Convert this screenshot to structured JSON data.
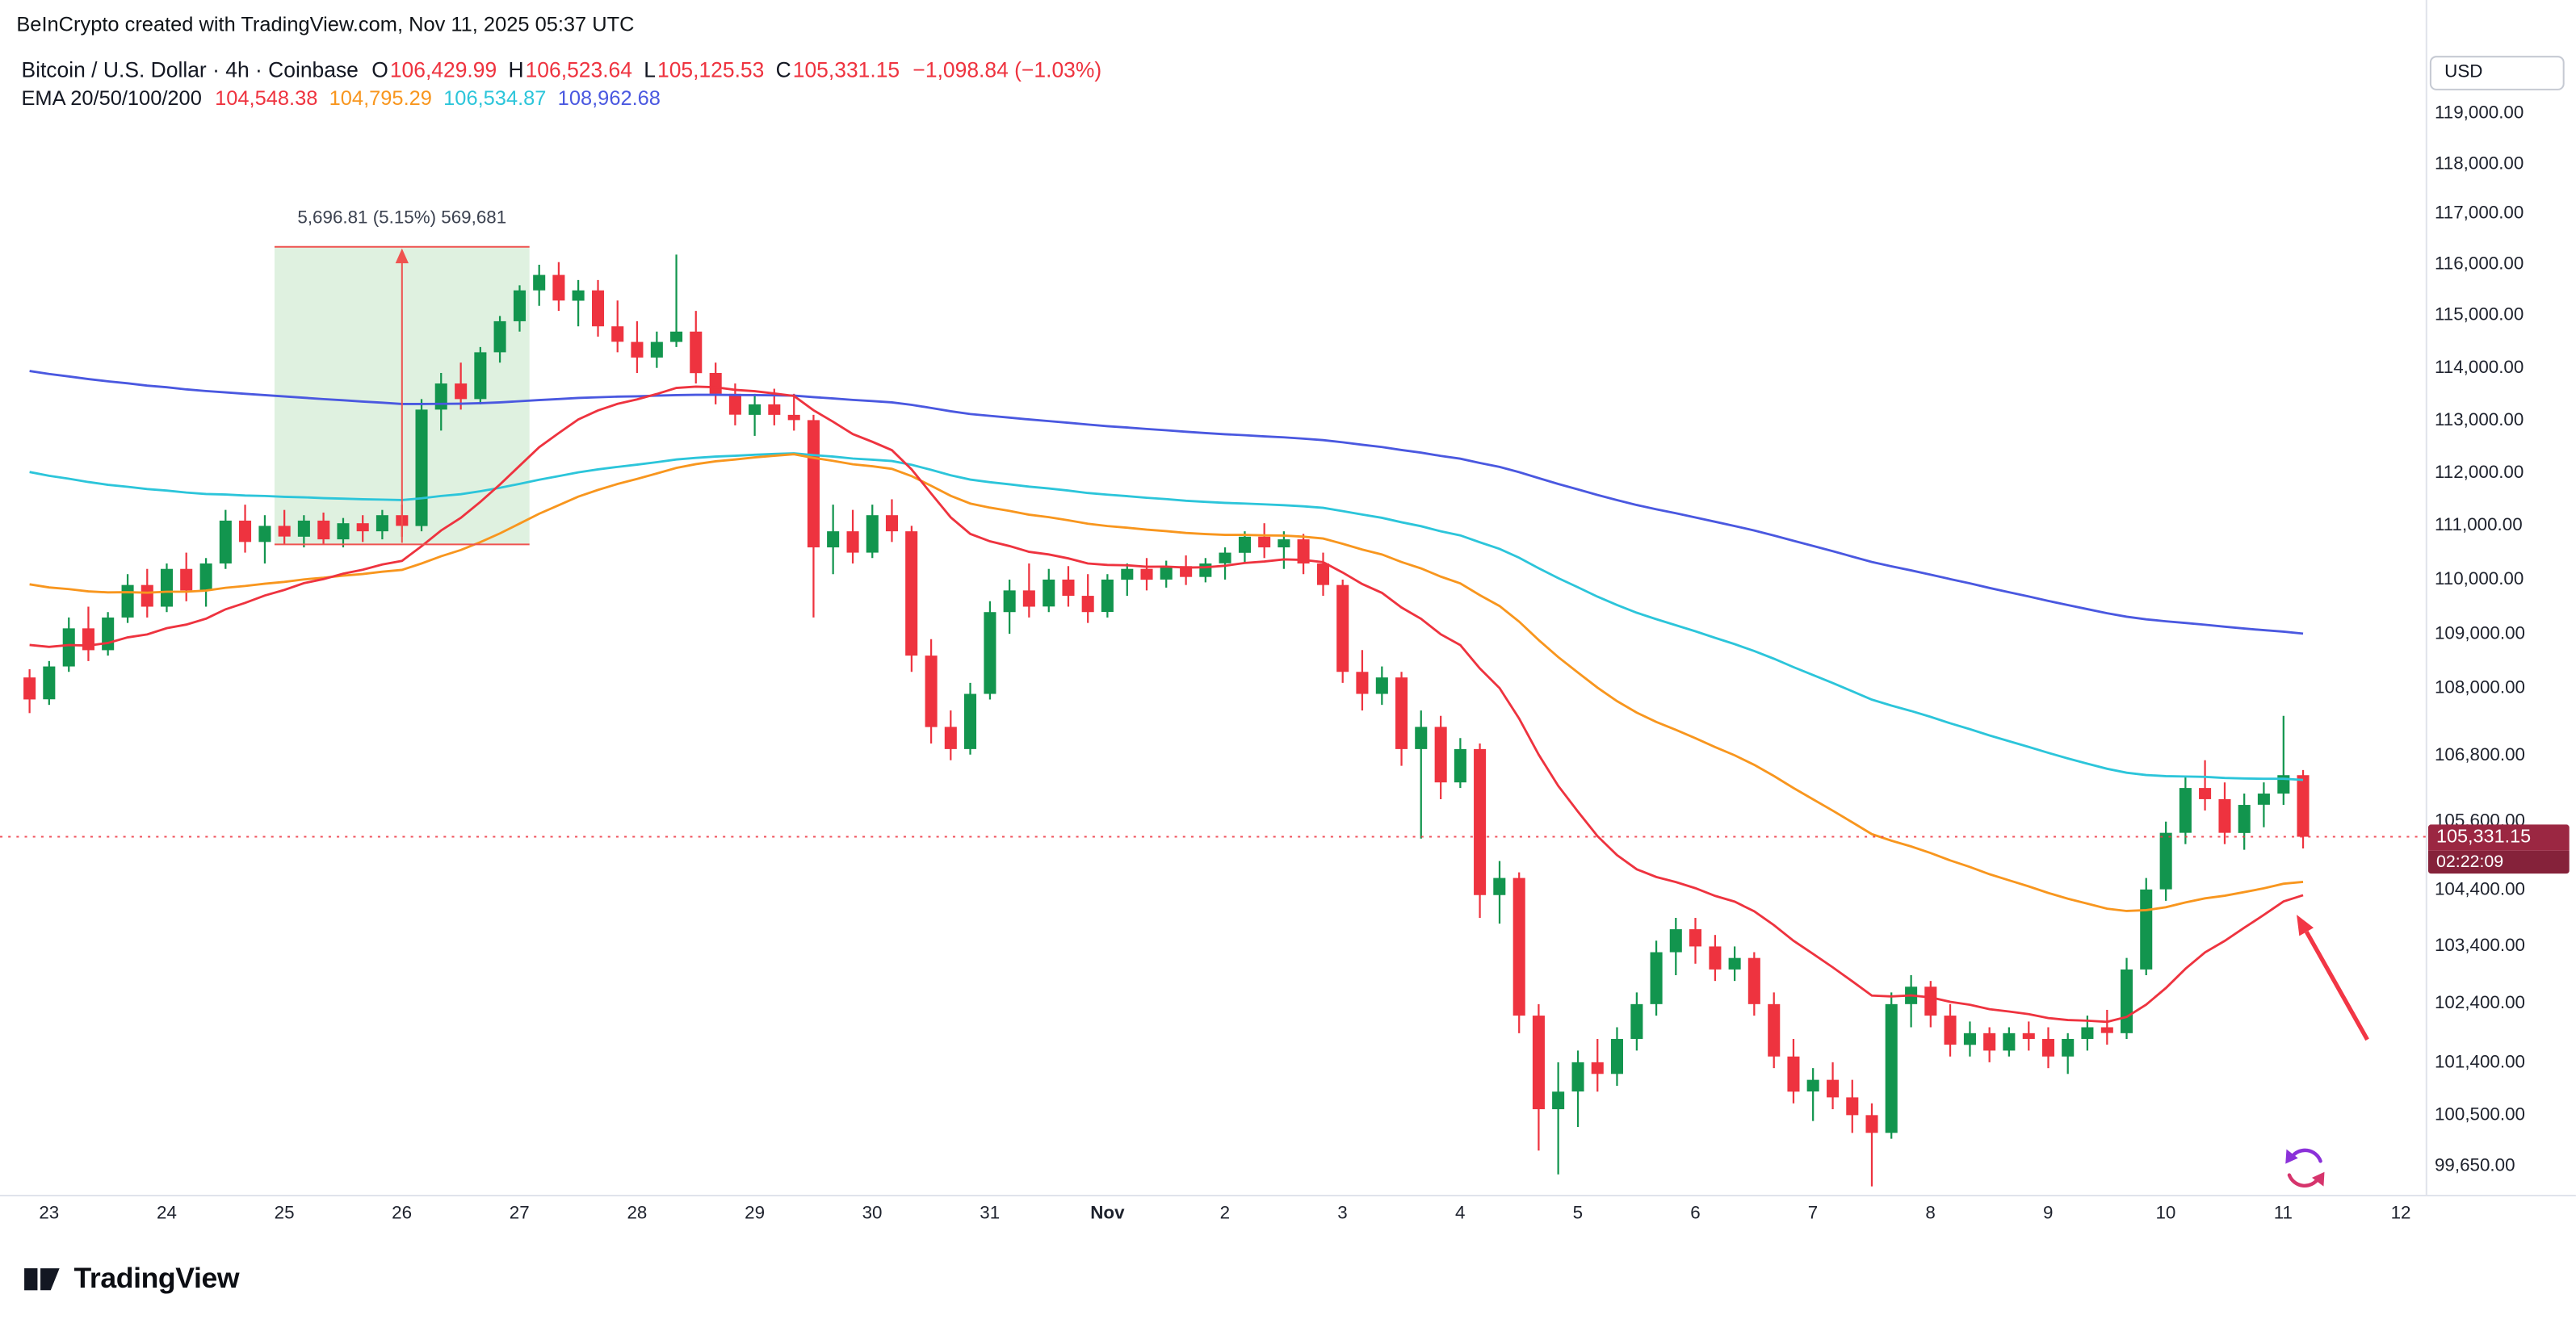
{
  "header": {
    "watermark": "BeInCrypto created with TradingView.com, Nov 11, 2025 05:37 UTC",
    "symbol_line": {
      "title": "Bitcoin / U.S. Dollar · 4h · Coinbase",
      "tokens": [
        {
          "k": "O",
          "v": "106,429.99"
        },
        {
          "k": "H",
          "v": "106,523.64"
        },
        {
          "k": "L",
          "v": "105,125.53"
        },
        {
          "k": "C",
          "v": "105,331.15"
        }
      ],
      "change": "−1,098.84 (−1.03%)"
    },
    "ema_line": {
      "title": "EMA 20/50/100/200"
    }
  },
  "price_axis": {
    "currency": "USD"
  },
  "footer": {
    "logo_text": "TradingView"
  },
  "palette": {
    "up": "#12954e",
    "down": "#ee333f",
    "grid": "#e0e3eb",
    "axis_text": "#1e222d",
    "badge_bg": "#9b2742",
    "badge_bg2": "#85223a",
    "measure_fill": "#6fbf73",
    "measure_line": "#ef5350",
    "arrow": "#f23645"
  },
  "chart_data": {
    "type": "candlestick",
    "title": "Bitcoin / U.S. Dollar · 4h · Coinbase",
    "interval": "4h",
    "exchange": "Coinbase",
    "y_axis": {
      "scale": "log",
      "labels": [
        {
          "price": 119000,
          "label": "119,000.00"
        },
        {
          "price": 118000,
          "label": "118,000.00"
        },
        {
          "price": 117000,
          "label": "117,000.00"
        },
        {
          "price": 116000,
          "label": "116,000.00"
        },
        {
          "price": 115000,
          "label": "115,000.00"
        },
        {
          "price": 114000,
          "label": "114,000.00"
        },
        {
          "price": 113000,
          "label": "113,000.00"
        },
        {
          "price": 112000,
          "label": "112,000.00"
        },
        {
          "price": 111000,
          "label": "111,000.00"
        },
        {
          "price": 110000,
          "label": "110,000.00"
        },
        {
          "price": 109000,
          "label": "109,000.00"
        },
        {
          "price": 108000,
          "label": "108,000.00"
        },
        {
          "price": 106800,
          "label": "106,800.00"
        },
        {
          "price": 105600,
          "label": "105,600.00"
        },
        {
          "price": 104400,
          "label": "104,400.00"
        },
        {
          "price": 103400,
          "label": "103,400.00"
        },
        {
          "price": 102400,
          "label": "102,400.00"
        },
        {
          "price": 101400,
          "label": "101,400.00"
        },
        {
          "price": 100500,
          "label": "100,500.00"
        },
        {
          "price": 99650,
          "label": "99,650.00"
        }
      ]
    },
    "x_axis": {
      "labels": [
        {
          "label": "23"
        },
        {
          "label": "24"
        },
        {
          "label": "25"
        },
        {
          "label": "26"
        },
        {
          "label": "27"
        },
        {
          "label": "28"
        },
        {
          "label": "29"
        },
        {
          "label": "30"
        },
        {
          "label": "31"
        },
        {
          "label": "Nov",
          "bold": true
        },
        {
          "label": "2"
        },
        {
          "label": "3"
        },
        {
          "label": "4"
        },
        {
          "label": "5"
        },
        {
          "label": "6"
        },
        {
          "label": "7"
        },
        {
          "label": "8"
        },
        {
          "label": "9"
        },
        {
          "label": "10"
        },
        {
          "label": "11"
        },
        {
          "label": "12"
        }
      ]
    },
    "candles": [
      [
        108200,
        108350,
        107550,
        107800
      ],
      [
        107800,
        108500,
        107700,
        108400
      ],
      [
        108400,
        109300,
        108300,
        109100
      ],
      [
        109100,
        109500,
        108500,
        108700
      ],
      [
        108700,
        109400,
        108600,
        109300
      ],
      [
        109300,
        110100,
        109200,
        109900
      ],
      [
        109900,
        110200,
        109300,
        109500
      ],
      [
        109500,
        110300,
        109400,
        110200
      ],
      [
        110200,
        110500,
        109600,
        109800
      ],
      [
        109800,
        110400,
        109500,
        110300
      ],
      [
        110300,
        111300,
        110200,
        111100
      ],
      [
        111100,
        111400,
        110500,
        110700
      ],
      [
        110700,
        111200,
        110300,
        111000
      ],
      [
        111000,
        111300,
        110650,
        110800
      ],
      [
        110800,
        111200,
        110600,
        111100
      ],
      [
        111100,
        111250,
        110650,
        110750
      ],
      [
        110750,
        111150,
        110600,
        111050
      ],
      [
        111050,
        111200,
        110700,
        110900
      ],
      [
        110900,
        111300,
        110750,
        111200
      ],
      [
        111200,
        111400,
        110800,
        111000
      ],
      [
        111000,
        113400,
        110900,
        113200
      ],
      [
        113200,
        113900,
        112800,
        113700
      ],
      [
        113700,
        114100,
        113200,
        113400
      ],
      [
        113400,
        114400,
        113300,
        114300
      ],
      [
        114300,
        115000,
        114100,
        114900
      ],
      [
        114900,
        115600,
        114700,
        115500
      ],
      [
        115500,
        116000,
        115200,
        115800
      ],
      [
        115800,
        116050,
        115100,
        115300
      ],
      [
        115300,
        115700,
        114800,
        115500
      ],
      [
        115500,
        115700,
        114600,
        114800
      ],
      [
        114800,
        115300,
        114300,
        114500
      ],
      [
        114500,
        114900,
        113900,
        114200
      ],
      [
        114200,
        114700,
        114000,
        114500
      ],
      [
        114500,
        116200,
        114400,
        114700
      ],
      [
        114700,
        115100,
        113700,
        113900
      ],
      [
        113900,
        114100,
        113300,
        113500
      ],
      [
        113500,
        113700,
        112900,
        113100
      ],
      [
        113100,
        113500,
        112700,
        113300
      ],
      [
        113300,
        113600,
        112900,
        113100
      ],
      [
        113100,
        113500,
        112800,
        113000
      ],
      [
        113000,
        113100,
        109300,
        110600
      ],
      [
        110600,
        111400,
        110100,
        110900
      ],
      [
        110900,
        111300,
        110300,
        110500
      ],
      [
        110500,
        111400,
        110400,
        111200
      ],
      [
        111200,
        111500,
        110700,
        110900
      ],
      [
        110900,
        111000,
        108300,
        108600
      ],
      [
        108600,
        108900,
        107000,
        107300
      ],
      [
        107300,
        107600,
        106700,
        106900
      ],
      [
        106900,
        108100,
        106800,
        107900
      ],
      [
        107900,
        109600,
        107800,
        109400
      ],
      [
        109400,
        110000,
        109000,
        109800
      ],
      [
        109800,
        110300,
        109300,
        109500
      ],
      [
        109500,
        110200,
        109400,
        110000
      ],
      [
        110000,
        110250,
        109500,
        109700
      ],
      [
        109700,
        110100,
        109200,
        109400
      ],
      [
        109400,
        110100,
        109300,
        110000
      ],
      [
        110000,
        110300,
        109700,
        110200
      ],
      [
        110200,
        110400,
        109800,
        110000
      ],
      [
        110000,
        110350,
        109850,
        110250
      ],
      [
        110250,
        110450,
        109900,
        110050
      ],
      [
        110050,
        110400,
        109950,
        110300
      ],
      [
        110300,
        110600,
        110000,
        110500
      ],
      [
        110500,
        110900,
        110300,
        110800
      ],
      [
        110800,
        111050,
        110400,
        110600
      ],
      [
        110600,
        110900,
        110200,
        110750
      ],
      [
        110750,
        110850,
        110100,
        110300
      ],
      [
        110300,
        110500,
        109700,
        109900
      ],
      [
        109900,
        110000,
        108100,
        108300
      ],
      [
        108300,
        108700,
        107600,
        107900
      ],
      [
        107900,
        108400,
        107700,
        108200
      ],
      [
        108200,
        108300,
        106600,
        106900
      ],
      [
        106900,
        107600,
        105300,
        107300
      ],
      [
        107300,
        107500,
        106000,
        106300
      ],
      [
        106300,
        107100,
        106200,
        106900
      ],
      [
        106900,
        107000,
        103900,
        104300
      ],
      [
        104300,
        104900,
        103800,
        104600
      ],
      [
        104600,
        104700,
        101900,
        102200
      ],
      [
        102200,
        102400,
        99900,
        100600
      ],
      [
        100600,
        101400,
        99500,
        100900
      ],
      [
        100900,
        101600,
        100300,
        101400
      ],
      [
        101400,
        101800,
        100900,
        101200
      ],
      [
        101200,
        102000,
        101000,
        101800
      ],
      [
        101800,
        102600,
        101600,
        102400
      ],
      [
        102400,
        103500,
        102200,
        103300
      ],
      [
        103300,
        103900,
        102900,
        103700
      ],
      [
        103700,
        103900,
        103100,
        103400
      ],
      [
        103400,
        103600,
        102800,
        103000
      ],
      [
        103000,
        103400,
        102800,
        103200
      ],
      [
        103200,
        103300,
        102200,
        102400
      ],
      [
        102400,
        102600,
        101300,
        101500
      ],
      [
        101500,
        101800,
        100700,
        100900
      ],
      [
        100900,
        101300,
        100400,
        101100
      ],
      [
        101100,
        101400,
        100600,
        100800
      ],
      [
        100800,
        101100,
        100200,
        100500
      ],
      [
        100500,
        100700,
        99300,
        100200
      ],
      [
        100200,
        102600,
        100100,
        102400
      ],
      [
        102400,
        102900,
        102000,
        102700
      ],
      [
        102700,
        102800,
        102000,
        102200
      ],
      [
        102200,
        102400,
        101500,
        101700
      ],
      [
        101700,
        102100,
        101500,
        101900
      ],
      [
        101900,
        102000,
        101400,
        101600
      ],
      [
        101600,
        102000,
        101500,
        101900
      ],
      [
        101900,
        102100,
        101600,
        101800
      ],
      [
        101800,
        102000,
        101300,
        101500
      ],
      [
        101500,
        101900,
        101200,
        101800
      ],
      [
        101800,
        102200,
        101600,
        102000
      ],
      [
        102000,
        102300,
        101700,
        101900
      ],
      [
        101900,
        103200,
        101800,
        103000
      ],
      [
        103000,
        104600,
        102900,
        104400
      ],
      [
        104400,
        105600,
        104200,
        105400
      ],
      [
        105400,
        106400,
        105200,
        106200
      ],
      [
        106200,
        106700,
        105800,
        106000
      ],
      [
        106000,
        106300,
        105200,
        105400
      ],
      [
        105400,
        106100,
        105100,
        105900
      ],
      [
        105900,
        106300,
        105500,
        106100
      ],
      [
        106100,
        107500,
        105900,
        106430
      ],
      [
        106429.99,
        106523.64,
        105125.53,
        105331.15
      ]
    ],
    "emas": [
      {
        "period": 20,
        "value": "104,548.38",
        "color": "#ee333f",
        "seed": 108900
      },
      {
        "period": 50,
        "value": "104,795.29",
        "color": "#f8961e",
        "seed": 110000
      },
      {
        "period": 100,
        "value": "106,534.87",
        "color": "#2cc5da",
        "seed": 112100
      },
      {
        "period": 200,
        "value": "108,962.68",
        "color": "#4a58e0",
        "seed": 114000
      }
    ],
    "last_price": {
      "value": 105331.15,
      "display": "105,331.15",
      "countdown": "02:22:09",
      "direction": "down"
    },
    "measure_tool": {
      "label": "5,696.81 (5.15%) 569,681",
      "price_from": 110653,
      "price_to": 116350,
      "candle_from": 13,
      "candle_to": 25
    }
  }
}
